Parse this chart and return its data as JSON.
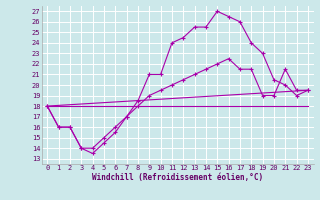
{
  "background_color": "#cce8ea",
  "grid_color": "#b8dde0",
  "line_color": "#aa00aa",
  "xlim": [
    -0.5,
    23.5
  ],
  "ylim": [
    12.5,
    27.5
  ],
  "yticks": [
    13,
    14,
    15,
    16,
    17,
    18,
    19,
    20,
    21,
    22,
    23,
    24,
    25,
    26,
    27
  ],
  "xticks": [
    0,
    1,
    2,
    3,
    4,
    5,
    6,
    7,
    8,
    9,
    10,
    11,
    12,
    13,
    14,
    15,
    16,
    17,
    18,
    19,
    20,
    21,
    22,
    23
  ],
  "series1_x": [
    0,
    1,
    2,
    3,
    4,
    5,
    6,
    7,
    8,
    9,
    10,
    11,
    12,
    13,
    14,
    15,
    16,
    17,
    18,
    19,
    20,
    21,
    22,
    23
  ],
  "series1_y": [
    18,
    16,
    16,
    14,
    13.5,
    14.5,
    15.5,
    17,
    18.5,
    21,
    21,
    24,
    24.5,
    25.5,
    25.5,
    27,
    26.5,
    26,
    24,
    23,
    20.5,
    20,
    19,
    19.5
  ],
  "series2_x": [
    0,
    1,
    2,
    3,
    4,
    5,
    6,
    7,
    8,
    9,
    10,
    11,
    12,
    13,
    14,
    15,
    16,
    17,
    18,
    19,
    20,
    21,
    22,
    23
  ],
  "series2_y": [
    18,
    16,
    16,
    14,
    14,
    15,
    16,
    17,
    18,
    19,
    19.5,
    20,
    20.5,
    21,
    21.5,
    22,
    22.5,
    21.5,
    21.5,
    19,
    19,
    21.5,
    19.5,
    19.5
  ],
  "line3_x": [
    0,
    23
  ],
  "line3_y": [
    18,
    18
  ],
  "line4_x": [
    0,
    23
  ],
  "line4_y": [
    18,
    19.5
  ],
  "tick_fontsize": 5.0,
  "xlabel": "Windchill (Refroidissement éolien,°C)",
  "xlabel_fontsize": 5.5,
  "xlabel_color": "#660066"
}
